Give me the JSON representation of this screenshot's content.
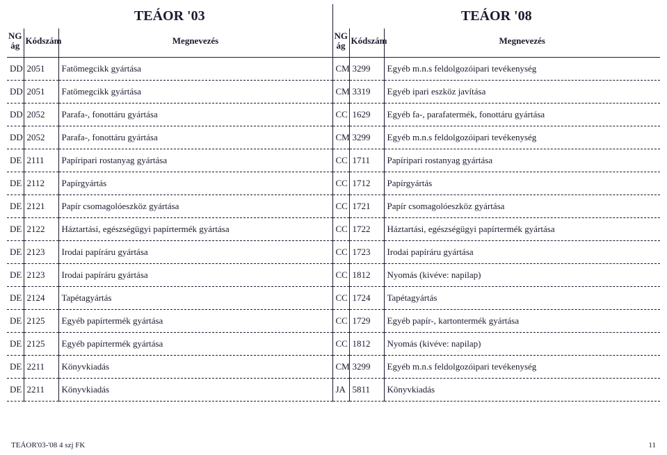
{
  "header": {
    "group_left": "TEÁOR '03",
    "group_right": "TEÁOR '08",
    "ng": "NG ág",
    "code": "Kódszám",
    "name": "Megnevezés"
  },
  "rows": [
    {
      "lng": "DD",
      "lcode": "2051",
      "lname": "Fatömegcikk gyártása",
      "rng": "CM",
      "rcode": "3299",
      "rname": "Egyéb m.n.s feldolgozóipari tevékenység"
    },
    {
      "lng": "DD",
      "lcode": "2051",
      "lname": "Fatömegcikk gyártása",
      "rng": "CM",
      "rcode": "3319",
      "rname": "Egyéb ipari eszköz javítása"
    },
    {
      "lng": "DD",
      "lcode": "2052",
      "lname": "Parafa-, fonottáru gyártása",
      "rng": "CC",
      "rcode": "1629",
      "rname": "Egyéb fa-, parafatermék, fonottáru gyártása"
    },
    {
      "lng": "DD",
      "lcode": "2052",
      "lname": "Parafa-, fonottáru gyártása",
      "rng": "CM",
      "rcode": "3299",
      "rname": "Egyéb m.n.s feldolgozóipari tevékenység"
    },
    {
      "lng": "DE",
      "lcode": "2111",
      "lname": "Papíripari rostanyag gyártása",
      "rng": "CC",
      "rcode": "1711",
      "rname": "Papíripari rostanyag gyártása"
    },
    {
      "lng": "DE",
      "lcode": "2112",
      "lname": "Papírgyártás",
      "rng": "CC",
      "rcode": "1712",
      "rname": "Papírgyártás"
    },
    {
      "lng": "DE",
      "lcode": "2121",
      "lname": "Papír csomagolóeszköz gyártása",
      "rng": "CC",
      "rcode": "1721",
      "rname": "Papír csomagolóeszköz gyártása"
    },
    {
      "lng": "DE",
      "lcode": "2122",
      "lname": "Háztartási, egészségügyi papírtermék gyártása",
      "rng": "CC",
      "rcode": "1722",
      "rname": "Háztartási, egészségügyi papírtermék gyártása"
    },
    {
      "lng": "DE",
      "lcode": "2123",
      "lname": "Irodai papíráru gyártása",
      "rng": "CC",
      "rcode": "1723",
      "rname": "Irodai papíráru gyártása"
    },
    {
      "lng": "DE",
      "lcode": "2123",
      "lname": "Irodai papíráru gyártása",
      "rng": "CC",
      "rcode": "1812",
      "rname": "Nyomás (kivéve: napilap)"
    },
    {
      "lng": "DE",
      "lcode": "2124",
      "lname": "Tapétagyártás",
      "rng": "CC",
      "rcode": "1724",
      "rname": "Tapétagyártás"
    },
    {
      "lng": "DE",
      "lcode": "2125",
      "lname": "Egyéb papírtermék gyártása",
      "rng": "CC",
      "rcode": "1729",
      "rname": "Egyéb papír-, kartontermék gyártása"
    },
    {
      "lng": "DE",
      "lcode": "2125",
      "lname": "Egyéb papírtermék gyártása",
      "rng": "CC",
      "rcode": "1812",
      "rname": "Nyomás (kivéve: napilap)"
    },
    {
      "lng": "DE",
      "lcode": "2211",
      "lname": "Könyvkiadás",
      "rng": "CM",
      "rcode": "3299",
      "rname": "Egyéb m.n.s feldolgozóipari tevékenység"
    },
    {
      "lng": "DE",
      "lcode": "2211",
      "lname": "Könyvkiadás",
      "rng": "JA",
      "rcode": "5811",
      "rname": "Könyvkiadás"
    }
  ],
  "footer": {
    "left": "TEÁOR'03-'08 4 szj FK",
    "page": "11"
  }
}
